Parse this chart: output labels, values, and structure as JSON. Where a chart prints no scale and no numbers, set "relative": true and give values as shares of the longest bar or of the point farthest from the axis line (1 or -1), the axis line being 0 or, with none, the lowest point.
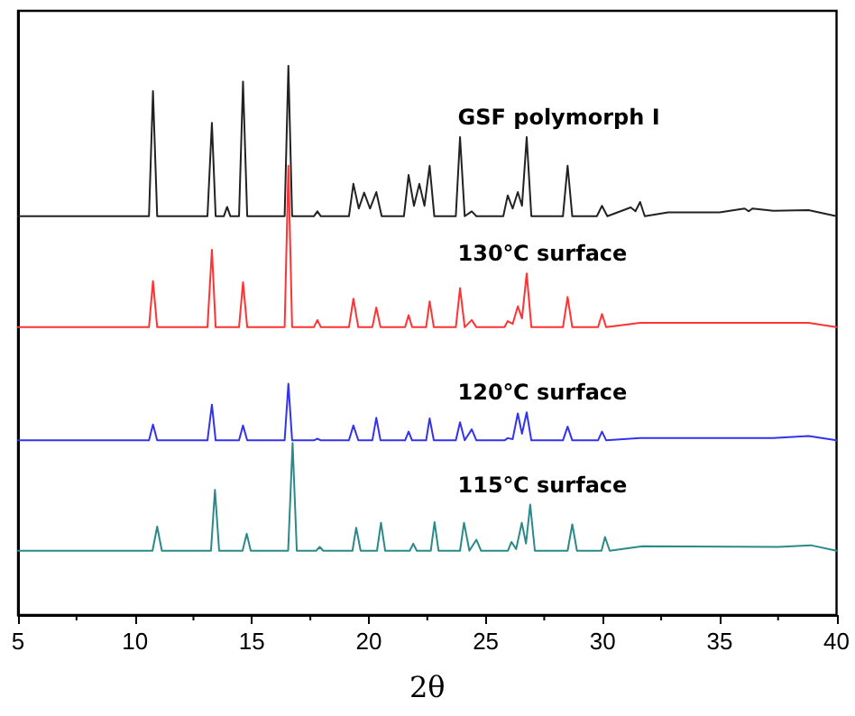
{
  "chart_data": {
    "type": "line",
    "relative": true,
    "xlabel": "2θ",
    "xlim": [
      5,
      40
    ],
    "xticks": [
      5,
      10,
      15,
      20,
      25,
      30,
      35,
      40
    ],
    "grid": false,
    "legend": false,
    "marker": "none",
    "line_style": "solid",
    "series": [
      {
        "name": "GSF polymorph I",
        "color": "#222222",
        "x": [
          5,
          10.6,
          10.77,
          10.95,
          13.1,
          13.29,
          13.45,
          13.8,
          13.94,
          14.08,
          14.45,
          14.62,
          14.8,
          16.4,
          16.56,
          16.72,
          17.65,
          17.8,
          17.95,
          19.15,
          19.34,
          19.57,
          19.8,
          20.05,
          20.32,
          20.55,
          21.5,
          21.7,
          21.93,
          22.16,
          22.38,
          22.6,
          22.8,
          23.72,
          23.9,
          24.1,
          24.4,
          24.6,
          25.75,
          25.94,
          26.15,
          26.37,
          26.55,
          26.75,
          26.95,
          28.3,
          28.5,
          28.7,
          29.75,
          29.97,
          30.2,
          31.2,
          31.4,
          31.6,
          31.8,
          32.8,
          35,
          36.07,
          36.25,
          36.4,
          37.3,
          38.8,
          40
        ],
        "values": [
          0.726,
          0.726,
          0.954,
          0.726,
          0.726,
          0.896,
          0.726,
          0.726,
          0.743,
          0.726,
          0.726,
          0.971,
          0.726,
          0.726,
          1,
          0.726,
          0.726,
          0.735,
          0.726,
          0.726,
          0.785,
          0.74,
          0.769,
          0.74,
          0.77,
          0.726,
          0.726,
          0.801,
          0.745,
          0.785,
          0.745,
          0.818,
          0.726,
          0.726,
          0.87,
          0.726,
          0.735,
          0.726,
          0.726,
          0.764,
          0.74,
          0.77,
          0.745,
          0.87,
          0.726,
          0.726,
          0.818,
          0.726,
          0.726,
          0.745,
          0.726,
          0.742,
          0.735,
          0.752,
          0.726,
          0.733,
          0.733,
          0.74,
          0.735,
          0.74,
          0.736,
          0.737,
          0.726
        ]
      },
      {
        "name": "130℃ surface",
        "color": "#ff3333",
        "x": [
          5,
          10.6,
          10.77,
          10.95,
          13.1,
          13.29,
          13.45,
          14.45,
          14.62,
          14.8,
          16.4,
          16.56,
          16.72,
          17.65,
          17.8,
          17.95,
          19.15,
          19.34,
          19.55,
          20.15,
          20.32,
          20.5,
          21.55,
          21.7,
          21.85,
          22.45,
          22.6,
          22.78,
          23.72,
          23.9,
          24.1,
          24.4,
          24.6,
          25.8,
          25.94,
          26.15,
          26.37,
          26.55,
          26.75,
          26.95,
          28.3,
          28.5,
          28.7,
          29.8,
          29.97,
          30.15,
          31.6,
          37.3,
          38.8,
          40
        ],
        "values": [
          0.524,
          0.524,
          0.608,
          0.524,
          0.524,
          0.665,
          0.524,
          0.524,
          0.606,
          0.524,
          0.524,
          0.818,
          0.524,
          0.524,
          0.537,
          0.524,
          0.524,
          0.576,
          0.524,
          0.524,
          0.56,
          0.524,
          0.524,
          0.546,
          0.524,
          0.524,
          0.571,
          0.524,
          0.524,
          0.595,
          0.524,
          0.537,
          0.524,
          0.524,
          0.535,
          0.53,
          0.562,
          0.54,
          0.622,
          0.524,
          0.524,
          0.579,
          0.524,
          0.524,
          0.548,
          0.524,
          0.532,
          0.532,
          0.532,
          0.524
        ]
      },
      {
        "name": "120℃ surface",
        "color": "#3333ee",
        "x": [
          5,
          10.6,
          10.77,
          10.95,
          13.1,
          13.29,
          13.45,
          14.45,
          14.62,
          14.8,
          16.4,
          16.56,
          16.72,
          17.65,
          17.8,
          17.95,
          19.15,
          19.34,
          19.55,
          20.15,
          20.32,
          20.5,
          21.55,
          21.7,
          21.85,
          22.45,
          22.6,
          22.78,
          23.72,
          23.9,
          24.1,
          24.4,
          24.6,
          25.8,
          25.94,
          26.15,
          26.37,
          26.55,
          26.75,
          26.95,
          28.3,
          28.5,
          28.7,
          29.8,
          29.97,
          30.15,
          31.6,
          37.3,
          38.8,
          40
        ],
        "values": [
          0.318,
          0.318,
          0.347,
          0.318,
          0.318,
          0.383,
          0.318,
          0.318,
          0.345,
          0.318,
          0.318,
          0.421,
          0.318,
          0.318,
          0.321,
          0.318,
          0.318,
          0.345,
          0.318,
          0.318,
          0.359,
          0.318,
          0.318,
          0.334,
          0.318,
          0.318,
          0.358,
          0.318,
          0.318,
          0.351,
          0.318,
          0.338,
          0.318,
          0.318,
          0.322,
          0.32,
          0.367,
          0.33,
          0.369,
          0.318,
          0.318,
          0.343,
          0.318,
          0.318,
          0.334,
          0.318,
          0.322,
          0.322,
          0.326,
          0.318
        ]
      },
      {
        "name": "115℃ surface",
        "color": "#2a8a8a",
        "x": [
          5,
          10.75,
          10.95,
          11.15,
          13.25,
          13.42,
          13.6,
          14.6,
          14.78,
          14.95,
          16.55,
          16.74,
          16.92,
          17.75,
          17.9,
          18.05,
          19.3,
          19.46,
          19.65,
          20.35,
          20.52,
          20.7,
          21.75,
          21.9,
          22.05,
          22.65,
          22.81,
          22.98,
          23.9,
          24.07,
          24.3,
          24.6,
          24.8,
          25.95,
          26.1,
          26.3,
          26.54,
          26.72,
          26.9,
          27.1,
          28.5,
          28.7,
          28.9,
          29.95,
          30.1,
          30.3,
          31.7,
          37.5,
          38.9,
          40
        ],
        "values": [
          0.117,
          0.117,
          0.161,
          0.117,
          0.117,
          0.228,
          0.117,
          0.117,
          0.148,
          0.117,
          0.117,
          0.313,
          0.117,
          0.117,
          0.124,
          0.117,
          0.117,
          0.159,
          0.117,
          0.117,
          0.168,
          0.117,
          0.117,
          0.13,
          0.117,
          0.117,
          0.169,
          0.117,
          0.117,
          0.168,
          0.117,
          0.137,
          0.117,
          0.117,
          0.133,
          0.12,
          0.168,
          0.13,
          0.201,
          0.117,
          0.117,
          0.165,
          0.117,
          0.117,
          0.142,
          0.117,
          0.125,
          0.124,
          0.127,
          0.117
        ]
      }
    ]
  }
}
